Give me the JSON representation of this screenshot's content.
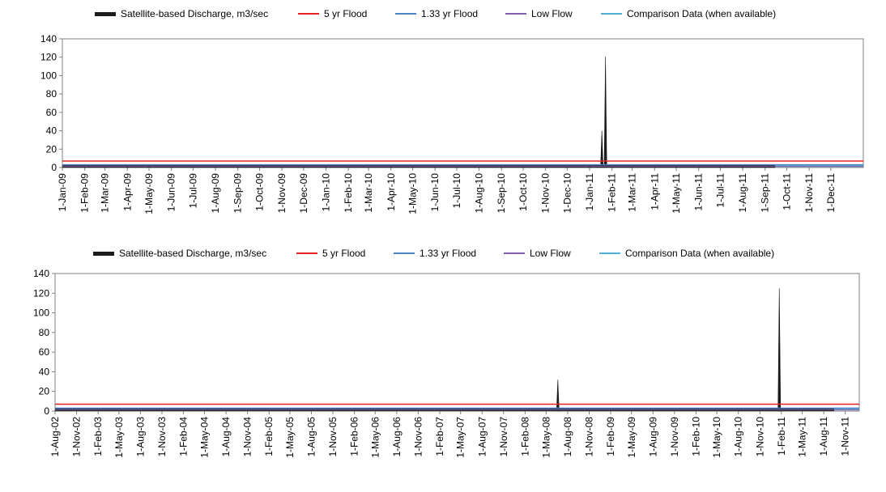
{
  "colors": {
    "discharge": "#1a1a1a",
    "flood5": "#e8231f",
    "flood133": "#4f7fc3",
    "lowflow": "#7e5fa6",
    "comparison": "#4fb2d6",
    "axis": "#808080"
  },
  "chart_data": [
    {
      "type": "area",
      "title": "",
      "xlabel": "",
      "ylabel": "",
      "ylim": [
        0,
        140
      ],
      "yticks": [
        "0",
        "20",
        "40",
        "60",
        "80",
        "100",
        "120",
        "140"
      ],
      "legend": [
        {
          "label": "Satellite-based Discharge, m3/sec",
          "style": "discharge"
        },
        {
          "label": "5 yr Flood",
          "style": "flood5"
        },
        {
          "label": "1.33 yr Flood",
          "style": "flood133"
        },
        {
          "label": "Low Flow",
          "style": "lowflow"
        },
        {
          "label": "Comparison Data (when available)",
          "style": "comparison"
        }
      ],
      "x_tick_labels": [
        "1-Jan-09",
        "1-Feb-09",
        "1-Mar-09",
        "1-Apr-09",
        "1-May-09",
        "1-Jun-09",
        "1-Jul-09",
        "1-Aug-09",
        "1-Sep-09",
        "1-Oct-09",
        "1-Nov-09",
        "1-Dec-09",
        "1-Jan-10",
        "1-Feb-10",
        "1-Mar-10",
        "1-Apr-10",
        "1-May-10",
        "1-Jun-10",
        "1-Jul-10",
        "1-Aug-10",
        "1-Sep-10",
        "1-Oct-10",
        "1-Nov-10",
        "1-Dec-10",
        "1-Jan-11",
        "1-Feb-11",
        "1-Mar-11",
        "1-Apr-11",
        "1-May-11",
        "1-Jun-11",
        "1-Jul-11",
        "1-Aug-11",
        "1-Sep-11",
        "1-Oct-11",
        "1-Nov-11",
        "1-Dec-11"
      ],
      "reference_lines": {
        "flood5": 7,
        "flood133": 3,
        "lowflow": 1.2
      },
      "series": [
        {
          "name": "Satellite-based Discharge, m3/sec",
          "baseline": 1.5,
          "end": "2011-09-15",
          "spikes": [
            {
              "x": "2011-01-18",
              "y": 40
            },
            {
              "x": "2011-01-23",
              "y": 121
            }
          ]
        },
        {
          "name": "Comparison Data (when available)",
          "value": 1.5,
          "start": "2011-09-15"
        }
      ]
    },
    {
      "type": "area",
      "title": "",
      "xlabel": "",
      "ylabel": "",
      "ylim": [
        0,
        140
      ],
      "yticks": [
        "0",
        "20",
        "40",
        "60",
        "80",
        "100",
        "120",
        "140"
      ],
      "legend": [
        {
          "label": "Satellite-based Discharge, m3/sec",
          "style": "discharge"
        },
        {
          "label": "5 yr Flood",
          "style": "flood5"
        },
        {
          "label": "1.33 yr Flood",
          "style": "flood133"
        },
        {
          "label": "Low Flow",
          "style": "lowflow"
        },
        {
          "label": "Comparison Data (when available)",
          "style": "comparison"
        }
      ],
      "x_tick_labels": [
        "1-Aug-02",
        "1-Nov-02",
        "1-Feb-03",
        "1-May-03",
        "1-Aug-03",
        "1-Nov-03",
        "1-Feb-04",
        "1-May-04",
        "1-Aug-04",
        "1-Nov-04",
        "1-Feb-05",
        "1-May-05",
        "1-Aug-05",
        "1-Nov-05",
        "1-Feb-06",
        "1-May-06",
        "1-Aug-06",
        "1-Nov-06",
        "1-Feb-07",
        "1-May-07",
        "1-Aug-07",
        "1-Nov-07",
        "1-Feb-08",
        "1-May-08",
        "1-Aug-08",
        "1-Nov-08",
        "1-Feb-09",
        "1-May-09",
        "1-Aug-09",
        "1-Nov-09",
        "1-Feb-10",
        "1-May-10",
        "1-Aug-10",
        "1-Nov-10",
        "1-Feb-11",
        "1-May-11",
        "1-Aug-11",
        "1-Nov-11"
      ],
      "reference_lines": {
        "flood5": 7,
        "flood133": 3,
        "lowflow": 1.2
      },
      "series": [
        {
          "name": "Satellite-based Discharge, m3/sec",
          "baseline": 1.5,
          "end": "2011-09-15",
          "spikes": [
            {
              "x": "2008-06-20",
              "y": 32
            },
            {
              "x": "2011-01-23",
              "y": 125
            }
          ]
        },
        {
          "name": "Comparison Data (when available)",
          "value": 1.5,
          "start": "2011-09-15"
        }
      ]
    }
  ]
}
